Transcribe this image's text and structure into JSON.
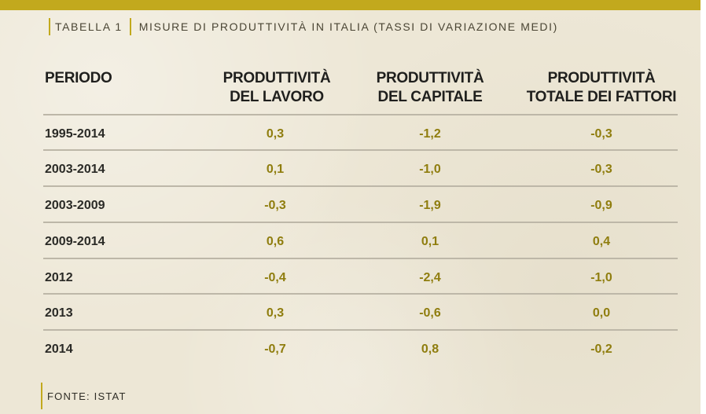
{
  "table": {
    "label": "Tabella 1",
    "title": "Misure di produttività in Italia (tassi di variazione medi)",
    "columns": [
      {
        "line1": "PERIODO",
        "line2": ""
      },
      {
        "line1": "PRODUTTIVITÀ",
        "line2": "DEL LAVORO"
      },
      {
        "line1": "PRODUTTIVITÀ",
        "line2": "DEL CAPITALE"
      },
      {
        "line1": "PRODUTTIVITÀ",
        "line2": "TOTALE DEI FATTORI"
      }
    ],
    "rows": [
      {
        "period": "1995-2014",
        "lavoro": "0,3",
        "capitale": "-1,2",
        "totale": "-0,3"
      },
      {
        "period": "2003-2014",
        "lavoro": "0,1",
        "capitale": "-1,0",
        "totale": "-0,3"
      },
      {
        "period": "2003-2009",
        "lavoro": "-0,3",
        "capitale": "-1,9",
        "totale": "-0,9"
      },
      {
        "period": "2009-2014",
        "lavoro": "0,6",
        "capitale": "0,1",
        "totale": "0,4"
      },
      {
        "period": "2012",
        "lavoro": "-0,4",
        "capitale": "-2,4",
        "totale": "-1,0"
      },
      {
        "period": "2013",
        "lavoro": "0,3",
        "capitale": "-0,6",
        "totale": "0,0"
      },
      {
        "period": "2014",
        "lavoro": "-0,7",
        "capitale": "0,8",
        "totale": "-0,2"
      }
    ],
    "source": "FONTE: ISTAT"
  },
  "colors": {
    "accent": "#c2a91d",
    "value_text": "#8f7d0e",
    "background": "#ede7d6"
  }
}
